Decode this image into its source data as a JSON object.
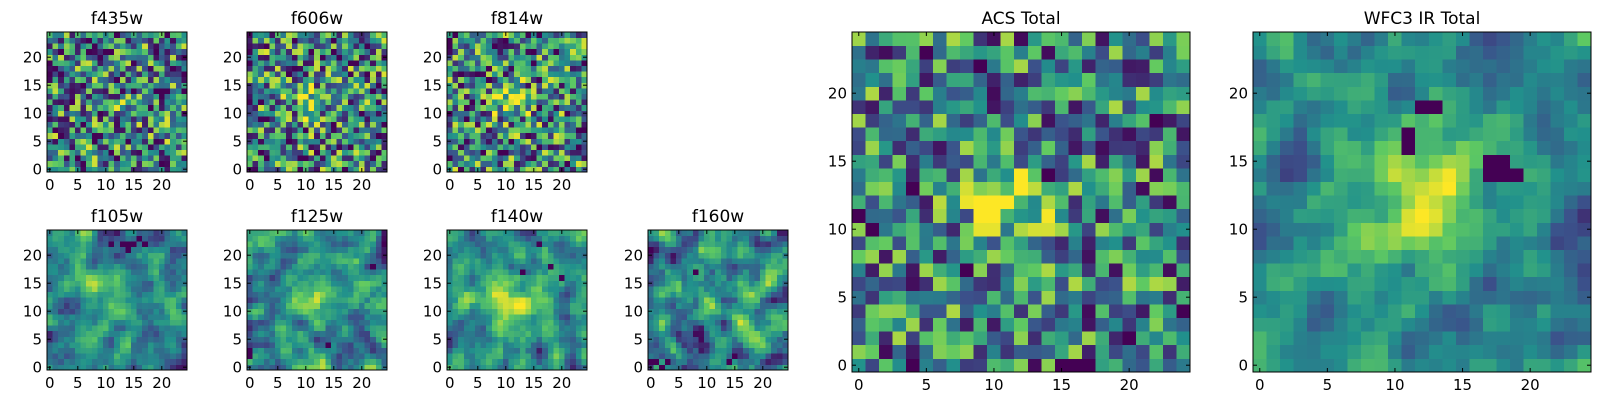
{
  "figure": {
    "colormap_stops": [
      "#440154",
      "#3b528b",
      "#21918c",
      "#5ec962",
      "#fde725"
    ]
  },
  "chart_data": [
    {
      "type": "heatmap",
      "title": "f435w",
      "grid_size": 25,
      "xticks": [
        "0",
        "5",
        "10",
        "15",
        "20"
      ],
      "yticks": [
        "0",
        "5",
        "10",
        "15",
        "20"
      ],
      "seed": 11,
      "sources": [
        {
          "cx": 12,
          "cy": 12,
          "amp": 0.06,
          "sigma": 3
        }
      ],
      "noise": 1.0,
      "pixel_smoothing": 0,
      "dark_spots": []
    },
    {
      "type": "heatmap",
      "title": "f606w",
      "grid_size": 25,
      "xticks": [
        "0",
        "5",
        "10",
        "15",
        "20"
      ],
      "yticks": [
        "0",
        "5",
        "10",
        "15",
        "20"
      ],
      "seed": 23,
      "sources": [
        {
          "cx": 11,
          "cy": 12,
          "amp": 0.35,
          "sigma": 2.2
        }
      ],
      "noise": 1.0,
      "pixel_smoothing": 0,
      "dark_spots": []
    },
    {
      "type": "heatmap",
      "title": "f814w",
      "grid_size": 25,
      "xticks": [
        "0",
        "5",
        "10",
        "15",
        "20"
      ],
      "yticks": [
        "0",
        "5",
        "10",
        "15",
        "20"
      ],
      "seed": 37,
      "sources": [
        {
          "cx": 11,
          "cy": 12,
          "amp": 0.4,
          "sigma": 2.2
        }
      ],
      "noise": 1.0,
      "pixel_smoothing": 0,
      "dark_spots": []
    },
    {
      "type": "heatmap",
      "title": "f105w",
      "grid_size": 25,
      "xticks": [
        "0",
        "5",
        "10",
        "15",
        "20"
      ],
      "yticks": [
        "0",
        "5",
        "10",
        "15",
        "20"
      ],
      "seed": 41,
      "sources": [
        {
          "cx": 12,
          "cy": 12,
          "amp": 0.25,
          "sigma": 3.5
        }
      ],
      "noise": 0.8,
      "pixel_smoothing": 1,
      "dark_spots": [
        [
          13,
          22
        ],
        [
          14,
          22
        ],
        [
          15,
          22
        ],
        [
          17,
          22
        ],
        [
          16,
          23
        ],
        [
          14,
          21
        ],
        [
          11,
          22
        ]
      ]
    },
    {
      "type": "heatmap",
      "title": "f125w",
      "grid_size": 25,
      "xticks": [
        "0",
        "5",
        "10",
        "15",
        "20"
      ],
      "yticks": [
        "0",
        "5",
        "10",
        "15",
        "20"
      ],
      "seed": 53,
      "sources": [
        {
          "cx": 12,
          "cy": 12,
          "amp": 0.2,
          "sigma": 3.5
        }
      ],
      "noise": 0.9,
      "pixel_smoothing": 1,
      "dark_spots": [
        [
          0,
          3
        ],
        [
          14,
          4
        ],
        [
          22,
          18
        ],
        [
          0,
          2
        ]
      ]
    },
    {
      "type": "heatmap",
      "title": "f140w",
      "grid_size": 25,
      "xticks": [
        "0",
        "5",
        "10",
        "15",
        "20"
      ],
      "yticks": [
        "0",
        "5",
        "10",
        "15",
        "20"
      ],
      "seed": 67,
      "sources": [
        {
          "cx": 11,
          "cy": 12,
          "amp": 0.3,
          "sigma": 4
        }
      ],
      "noise": 0.75,
      "pixel_smoothing": 1,
      "dark_spots": [
        [
          16,
          22
        ],
        [
          13,
          17
        ],
        [
          20,
          16
        ],
        [
          18,
          18
        ]
      ]
    },
    {
      "type": "heatmap",
      "title": "f160w",
      "grid_size": 25,
      "xticks": [
        "0",
        "5",
        "10",
        "15",
        "20"
      ],
      "yticks": [
        "0",
        "5",
        "10",
        "15",
        "20"
      ],
      "seed": 79,
      "sources": [
        {
          "cx": 12,
          "cy": 12,
          "amp": 0.15,
          "sigma": 3.5
        }
      ],
      "noise": 0.9,
      "pixel_smoothing": 1,
      "dark_spots": [
        [
          1,
          1
        ],
        [
          3,
          1
        ],
        [
          2,
          0
        ],
        [
          8,
          17
        ],
        [
          15,
          2
        ],
        [
          14,
          1
        ],
        [
          0,
          1
        ]
      ]
    },
    {
      "type": "heatmap",
      "title": "ACS Total",
      "grid_size": 25,
      "xticks": [
        "0",
        "5",
        "10",
        "15",
        "20"
      ],
      "yticks": [
        "0",
        "5",
        "10",
        "15",
        "20"
      ],
      "seed": 97,
      "sources": [
        {
          "cx": 11,
          "cy": 12,
          "amp": 0.45,
          "sigma": 2.3
        }
      ],
      "noise": 0.85,
      "pixel_smoothing": 0,
      "dark_spots": [
        [
          5,
          23
        ],
        [
          9,
          22
        ],
        [
          1,
          10
        ],
        [
          0,
          11
        ],
        [
          15,
          0
        ],
        [
          16,
          0
        ],
        [
          17,
          0
        ],
        [
          4,
          13
        ],
        [
          24,
          4
        ],
        [
          22,
          18
        ],
        [
          20,
          2
        ],
        [
          8,
          7
        ],
        [
          14,
          14
        ],
        [
          4,
          0
        ]
      ]
    },
    {
      "type": "heatmap",
      "title": "WFC3 IR Total",
      "grid_size": 25,
      "xticks": [
        "0",
        "5",
        "10",
        "15",
        "20"
      ],
      "yticks": [
        "0",
        "5",
        "10",
        "15",
        "20"
      ],
      "seed": 113,
      "sources": [
        {
          "cx": 12,
          "cy": 12,
          "amp": 0.55,
          "sigma": 3.0
        }
      ],
      "noise": 0.6,
      "pixel_smoothing": 1,
      "dark_spots": [
        [
          17,
          14
        ],
        [
          18,
          14
        ],
        [
          19,
          14
        ],
        [
          17,
          15
        ],
        [
          18,
          15
        ],
        [
          11,
          16
        ],
        [
          11,
          17
        ],
        [
          12,
          19
        ],
        [
          13,
          19
        ]
      ]
    }
  ]
}
